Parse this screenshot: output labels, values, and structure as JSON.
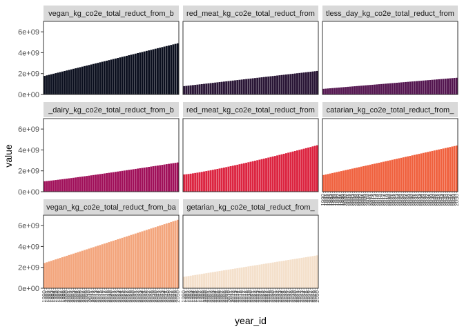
{
  "chart_data": {
    "type": "bar",
    "layout": "faceted-3x3",
    "xlabel": "year_id",
    "ylabel": "value",
    "ylim": [
      0,
      7000000000
    ],
    "y_ticks": [
      "0e+00",
      "2e+09",
      "4e+09",
      "6e+09"
    ],
    "y_tick_values": [
      0,
      2000000000,
      4000000000,
      6000000000
    ],
    "x_tick_labels": [
      "1990",
      "1991",
      "1992",
      "1993",
      "1994",
      "1995",
      "1996",
      "1997",
      "1998",
      "1999",
      "2000",
      "2001",
      "2002",
      "2003",
      "2004",
      "2005",
      "2006",
      "2007",
      "2008",
      "2009",
      "2010",
      "2011",
      "2012",
      "2013",
      "2014",
      "2015",
      "2016",
      "2017",
      "2018",
      "2019",
      "2020",
      "2021",
      "2022",
      "2023",
      "2024",
      "2025",
      "2026",
      "2027",
      "2028",
      "2029",
      "2030",
      "2031",
      "2032",
      "2033",
      "2034",
      "2035",
      "2036",
      "2037",
      "2038",
      "2039",
      "2040",
      "2041",
      "2042",
      "2043",
      "2044",
      "2045",
      "2046",
      "2047",
      "2048",
      "2049",
      "2050"
    ],
    "bars_per_panel": 61,
    "panels": [
      {
        "title": "vegan_kg_co2e_total_reduct_from_b",
        "color": "#0b0f1e",
        "start": 1780000000,
        "end": 4900000000,
        "shape": 1.0
      },
      {
        "title": "red_meat_kg_co2e_total_reduct_from",
        "color": "#2a1636",
        "start": 800000000,
        "end": 2250000000,
        "shape": 1.0
      },
      {
        "title": "tless_day_kg_co2e_total_reduct_from",
        "color": "#541650",
        "start": 540000000,
        "end": 1600000000,
        "shape": 1.0
      },
      {
        "title": "_dairy_kg_co2e_total_reduct_from_b",
        "color": "#a0105a",
        "start": 1000000000,
        "end": 2800000000,
        "shape": 1.1
      },
      {
        "title": "red_meat_kg_co2e_total_reduct_from",
        "color": "#dc2440",
        "start": 1650000000,
        "end": 4450000000,
        "shape": 1.2
      },
      {
        "title": "catarian_kg_co2e_total_reduct_from_",
        "color": "#f0613e",
        "start": 1600000000,
        "end": 4420000000,
        "shape": 1.0
      },
      {
        "title": "vegan_kg_co2e_total_reduct_from_ba",
        "color": "#f3a57c",
        "start": 2420000000,
        "end": 6550000000,
        "shape": 1.0
      },
      {
        "title": "getarian_kg_co2e_total_reduct_from_",
        "color": "#f4e0cb",
        "start": 1100000000,
        "end": 3150000000,
        "shape": 1.0
      }
    ]
  }
}
